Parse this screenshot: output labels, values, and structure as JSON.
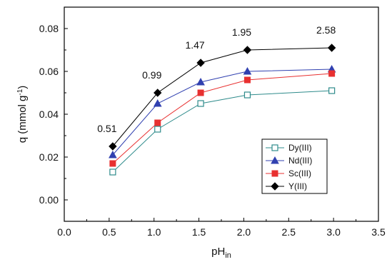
{
  "chart_data": {
    "type": "line",
    "xlabel": "pH",
    "xlabel_sub": "in",
    "ylabel": "q (mmol g",
    "ylabel_sup": "-1",
    "ylabel_end": ")",
    "xlim": [
      0.0,
      3.5
    ],
    "ylim": [
      -0.01,
      0.09
    ],
    "x_ticks": [
      "0.0",
      "0.5",
      "1.0",
      "1.5",
      "2.0",
      "2.5",
      "3.0",
      "3.5"
    ],
    "y_ticks": [
      "0.00",
      "0.02",
      "0.04",
      "0.06",
      "0.08"
    ],
    "grid": false,
    "legend_position": "bottom-right",
    "x": [
      0.54,
      1.04,
      1.52,
      2.04,
      2.98
    ],
    "series": [
      {
        "name": "Dy(III)",
        "marker": "open-square",
        "color": "#2e8b8b",
        "values": [
          0.013,
          0.033,
          0.045,
          0.049,
          0.051
        ]
      },
      {
        "name": "Nd(III)",
        "marker": "triangle",
        "color": "#3040b0",
        "values": [
          0.021,
          0.045,
          0.055,
          0.06,
          0.061
        ]
      },
      {
        "name": "Sc(III)",
        "marker": "square",
        "color": "#e83030",
        "values": [
          0.017,
          0.036,
          0.05,
          0.056,
          0.059
        ]
      },
      {
        "name": "Y(III)",
        "marker": "diamond",
        "color": "#000000",
        "values": [
          0.025,
          0.05,
          0.064,
          0.07,
          0.071
        ]
      }
    ],
    "annotations": [
      {
        "text": "0.51",
        "x": 0.54,
        "y": 0.025
      },
      {
        "text": "0.99",
        "x": 1.04,
        "y": 0.05
      },
      {
        "text": "1.47",
        "x": 1.52,
        "y": 0.064
      },
      {
        "text": "1.95",
        "x": 2.04,
        "y": 0.07
      },
      {
        "text": "2.58",
        "x": 2.98,
        "y": 0.071
      }
    ]
  }
}
